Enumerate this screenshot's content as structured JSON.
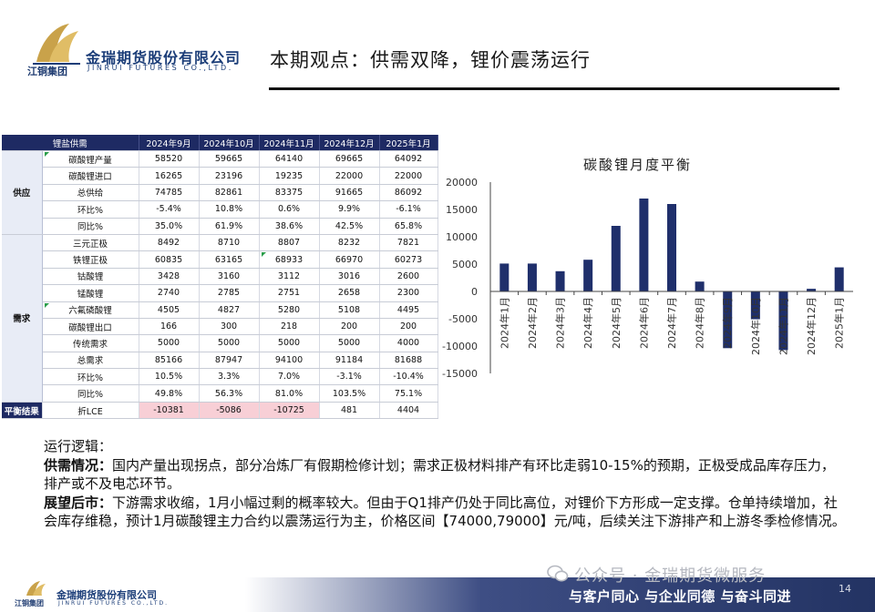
{
  "header": {
    "company_cn": "金瑞期货股份有限公司",
    "company_en": "JINRUI FUTURES CO.,LTD.",
    "group": "江铜集团",
    "title": "本期观点：供需双降，锂价震荡运行"
  },
  "table": {
    "headers": [
      "锂盐供需",
      "2024年9月",
      "2024年10月",
      "2024年11月",
      "2024年12月",
      "2025年1月"
    ],
    "groups": [
      {
        "label": "供应",
        "rows": [
          {
            "name": "碳酸锂产量",
            "values": [
              "58520",
              "59665",
              "64140",
              "69665",
              "64092"
            ]
          },
          {
            "name": "碳酸锂进口",
            "values": [
              "16265",
              "23196",
              "19235",
              "22000",
              "22000"
            ]
          },
          {
            "name": "总供给",
            "values": [
              "74785",
              "82861",
              "83375",
              "91665",
              "86092"
            ]
          },
          {
            "name": "环比%",
            "values": [
              "-5.4%",
              "10.8%",
              "0.6%",
              "9.9%",
              "-6.1%"
            ]
          },
          {
            "name": "同比%",
            "values": [
              "35.0%",
              "61.9%",
              "38.6%",
              "42.5%",
              "65.8%"
            ]
          }
        ]
      },
      {
        "label": "需求",
        "rows": [
          {
            "name": "三元正极",
            "values": [
              "8492",
              "8710",
              "8807",
              "8232",
              "7821"
            ]
          },
          {
            "name": "铁锂正极",
            "values": [
              "60835",
              "63165",
              "68933",
              "66970",
              "60273"
            ]
          },
          {
            "name": "钴酸锂",
            "values": [
              "3428",
              "3160",
              "3112",
              "3016",
              "2600"
            ]
          },
          {
            "name": "锰酸锂",
            "values": [
              "2740",
              "2785",
              "2751",
              "2658",
              "2300"
            ]
          },
          {
            "name": "六氟磷酸锂",
            "values": [
              "4505",
              "4827",
              "5280",
              "5108",
              "4495"
            ]
          },
          {
            "name": "碳酸锂出口",
            "values": [
              "166",
              "300",
              "218",
              "200",
              "200"
            ]
          },
          {
            "name": "传统需求",
            "values": [
              "5000",
              "5000",
              "5000",
              "5000",
              "4000"
            ]
          },
          {
            "name": "总需求",
            "values": [
              "85166",
              "87947",
              "94100",
              "91184",
              "81688"
            ]
          },
          {
            "name": "环比%",
            "values": [
              "10.5%",
              "3.3%",
              "7.0%",
              "-3.1%",
              "-10.4%"
            ]
          },
          {
            "name": "同比%",
            "values": [
              "49.8%",
              "56.3%",
              "81.0%",
              "103.5%",
              "75.1%"
            ]
          }
        ]
      }
    ],
    "balance": {
      "label": "平衡结果",
      "name": "折LCE",
      "values": [
        "-10381",
        "-5086",
        "-10725",
        "481",
        "4404"
      ]
    }
  },
  "chart_data": {
    "type": "bar",
    "title": "碳酸锂月度平衡",
    "categories": [
      "2024年1月",
      "2024年2月",
      "2024年3月",
      "2024年4月",
      "2024年5月",
      "2024年6月",
      "2024年7月",
      "2024年8月",
      "2024年9月",
      "2024年10月",
      "2024年11月",
      "2024年12月",
      "2025年1月"
    ],
    "values": [
      5100,
      5100,
      3700,
      5800,
      12000,
      17000,
      16000,
      1800,
      -10381,
      -5086,
      -10725,
      481,
      4404
    ],
    "yticks": [
      "20000",
      "15000",
      "10000",
      "5000",
      "0",
      "-5000",
      "-10000",
      "-15000"
    ],
    "ylim": [
      -15000,
      20000
    ],
    "bar_color": "#1f2f6b",
    "grid": false
  },
  "text": {
    "logic_label": "运行逻辑：",
    "supply_label": "供需情况：",
    "supply_text": "国内产量出现拐点，部分冶炼厂有假期检修计划；需求正极材料排产有环比走弱10-15%的预期，正极受成品库存压力，排产或不及电芯环节。",
    "outlook_label": "展望后市：",
    "outlook_text": "下游需求收缩，1月小幅过剩的概率较大。但由于Q1排产仍处于同比高位，对锂价下方形成一定支撑。仓单持续增加，社会库存维稳，预计1月碳酸锂主力合约以震荡运行为主，价格区间【74000,79000】元/吨，后续关注下游排产和上游冬季检修情况。"
  },
  "footer": {
    "company_cn": "金瑞期货股份有限公司",
    "company_en": "JINRUI FUTURES CO.,LTD.",
    "group": "江铜集团",
    "slogan": "与客户同心 与企业同德 与奋斗同进",
    "page": "14",
    "watermark": "公众号 · 金瑞期货微服务"
  }
}
